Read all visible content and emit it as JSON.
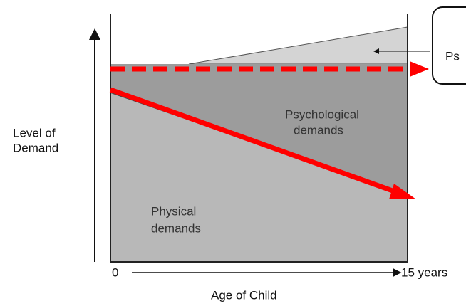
{
  "diagram": {
    "y_axis_label": [
      "Level of",
      "Demand"
    ],
    "x_axis_label": "Age of Child",
    "x_start": "0",
    "x_end": "15 years",
    "regions": {
      "psychological": [
        "Psychological",
        "demands"
      ],
      "physical": [
        "Physical",
        "demands"
      ]
    },
    "callout": "Ps"
  }
}
